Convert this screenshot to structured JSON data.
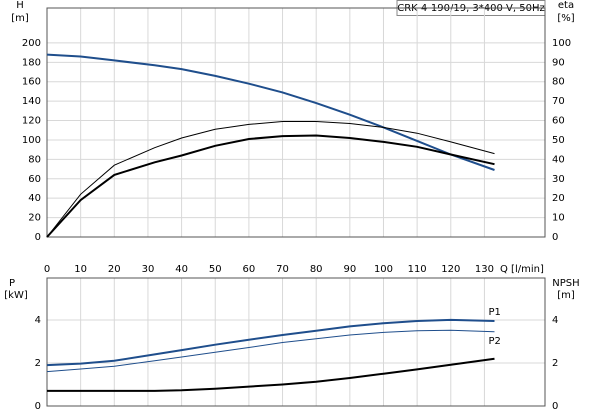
{
  "chart_data": [
    {
      "type": "line",
      "title": "CRK 4-190/19, 3*400 V, 50Hz",
      "ylabel": "H",
      "yunit": "[m]",
      "y2label": "eta",
      "y2unit": "[%]",
      "xlabel": "Q [l/min]",
      "x": [
        0,
        10,
        20,
        32,
        40,
        50,
        60,
        70,
        80,
        90,
        100,
        110,
        120,
        133
      ],
      "xlim": [
        0,
        148
      ],
      "xticks": [
        0,
        10,
        20,
        30,
        40,
        50,
        60,
        70,
        80,
        90,
        100,
        110,
        120,
        130
      ],
      "ylim": [
        0,
        236
      ],
      "yticks": [
        0,
        20,
        40,
        60,
        80,
        100,
        120,
        140,
        160,
        180,
        200
      ],
      "y2lim": [
        0,
        118
      ],
      "y2ticks": [
        0,
        10,
        20,
        30,
        40,
        50,
        60,
        70,
        80,
        90,
        100
      ],
      "grid": true,
      "series": [
        {
          "color": "#1f4e8c",
          "values": [
            188,
            186,
            182,
            177,
            173,
            166,
            158,
            149,
            138,
            126,
            113,
            99,
            85,
            69
          ]
        },
        {
          "color": "#000000",
          "axis": "y2",
          "values": [
            0,
            22,
            37,
            46,
            51,
            55.5,
            58,
            59.5,
            59.5,
            58.5,
            56.5,
            53.5,
            49,
            43
          ]
        },
        {
          "color": "#000000",
          "axis": "y2",
          "values": [
            0,
            19,
            32,
            38.5,
            42,
            47,
            50.5,
            52,
            52.3,
            51,
            49,
            46.5,
            42.5,
            37.5
          ]
        }
      ]
    },
    {
      "type": "line",
      "ylabel": "P",
      "yunit": "[kW]",
      "y2label": "NPSH",
      "y2unit": "[m]",
      "x": [
        0,
        10,
        20,
        32,
        40,
        50,
        60,
        70,
        80,
        90,
        100,
        110,
        120,
        133
      ],
      "xlim": [
        0,
        148
      ],
      "ylim": [
        0,
        5.95
      ],
      "yticks": [
        0,
        2,
        4
      ],
      "y2lim": [
        0,
        5.95
      ],
      "y2ticks": [
        0,
        2,
        4
      ],
      "grid": true,
      "series": [
        {
          "name": "P1",
          "color": "#1f4e8c",
          "values": [
            1.9,
            1.97,
            2.1,
            2.4,
            2.6,
            2.85,
            3.08,
            3.3,
            3.5,
            3.7,
            3.85,
            3.95,
            4.0,
            3.95
          ]
        },
        {
          "name": "P2",
          "color": "#1f4e8c",
          "values": [
            1.6,
            1.72,
            1.85,
            2.1,
            2.28,
            2.5,
            2.72,
            2.95,
            3.13,
            3.3,
            3.42,
            3.5,
            3.52,
            3.45
          ]
        },
        {
          "color": "#000000",
          "axis": "y2",
          "values": [
            0.7,
            0.7,
            0.7,
            0.7,
            0.73,
            0.8,
            0.9,
            1.0,
            1.13,
            1.3,
            1.5,
            1.7,
            1.92,
            2.2
          ]
        }
      ]
    }
  ]
}
